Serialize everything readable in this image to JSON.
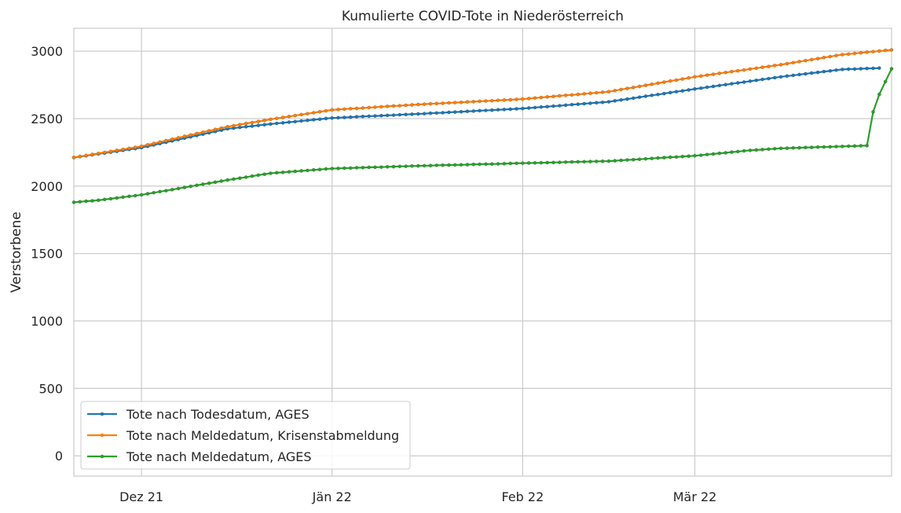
{
  "chart_data": {
    "type": "line",
    "title": "Kumulierte COVID-Tote in Niederösterreich",
    "xlabel": "",
    "ylabel": "Verstorbene",
    "x_start": "2021-11-20",
    "x_end": "2022-04-02",
    "x_ticks": [
      {
        "date": "2021-12-01",
        "label": "Dez 21"
      },
      {
        "date": "2022-01-01",
        "label": "Jän 22"
      },
      {
        "date": "2022-02-01",
        "label": "Feb 22"
      },
      {
        "date": "2022-03-01",
        "label": "Mär 22"
      }
    ],
    "ylim": [
      -150,
      3170
    ],
    "y_ticks": [
      0,
      500,
      1000,
      1500,
      2000,
      2500,
      3000
    ],
    "grid": true,
    "legend_position": "lower-left",
    "series": [
      {
        "name": "Tote nach Todesdatum, AGES",
        "color": "#1f77b4",
        "start": "2021-11-20",
        "end": "2022-03-31",
        "anchors": [
          [
            "2021-11-20",
            2212
          ],
          [
            "2021-12-01",
            2285
          ],
          [
            "2021-12-10",
            2375
          ],
          [
            "2021-12-15",
            2425
          ],
          [
            "2021-12-22",
            2460
          ],
          [
            "2022-01-01",
            2505
          ],
          [
            "2022-01-15",
            2535
          ],
          [
            "2022-02-01",
            2575
          ],
          [
            "2022-02-15",
            2625
          ],
          [
            "2022-03-01",
            2720
          ],
          [
            "2022-03-15",
            2810
          ],
          [
            "2022-03-25",
            2865
          ],
          [
            "2022-03-31",
            2875
          ]
        ]
      },
      {
        "name": "Tote nach Meldedatum, Krisenstabmeldung",
        "color": "#ff7f0e",
        "start": "2021-11-20",
        "end": "2022-04-02",
        "anchors": [
          [
            "2021-11-20",
            2212
          ],
          [
            "2021-12-01",
            2295
          ],
          [
            "2021-12-10",
            2390
          ],
          [
            "2021-12-15",
            2440
          ],
          [
            "2021-12-22",
            2495
          ],
          [
            "2022-01-01",
            2565
          ],
          [
            "2022-01-15",
            2605
          ],
          [
            "2022-02-01",
            2645
          ],
          [
            "2022-02-15",
            2700
          ],
          [
            "2022-03-01",
            2810
          ],
          [
            "2022-03-15",
            2900
          ],
          [
            "2022-03-25",
            2975
          ],
          [
            "2022-04-02",
            3010
          ]
        ]
      },
      {
        "name": "Tote nach Meldedatum, AGES",
        "color": "#2ca02c",
        "start": "2021-11-20",
        "end": "2022-04-02",
        "anchors": [
          [
            "2021-11-20",
            1880
          ],
          [
            "2021-11-24",
            1895
          ],
          [
            "2021-12-01",
            1935
          ],
          [
            "2021-12-08",
            1990
          ],
          [
            "2021-12-15",
            2045
          ],
          [
            "2021-12-22",
            2095
          ],
          [
            "2022-01-01",
            2130
          ],
          [
            "2022-01-15",
            2150
          ],
          [
            "2022-02-01",
            2170
          ],
          [
            "2022-02-15",
            2185
          ],
          [
            "2022-03-01",
            2225
          ],
          [
            "2022-03-10",
            2265
          ],
          [
            "2022-03-15",
            2280
          ],
          [
            "2022-03-29",
            2300
          ],
          [
            "2022-03-30",
            2550
          ],
          [
            "2022-03-31",
            2680
          ],
          [
            "2022-04-02",
            2870
          ]
        ]
      }
    ]
  }
}
